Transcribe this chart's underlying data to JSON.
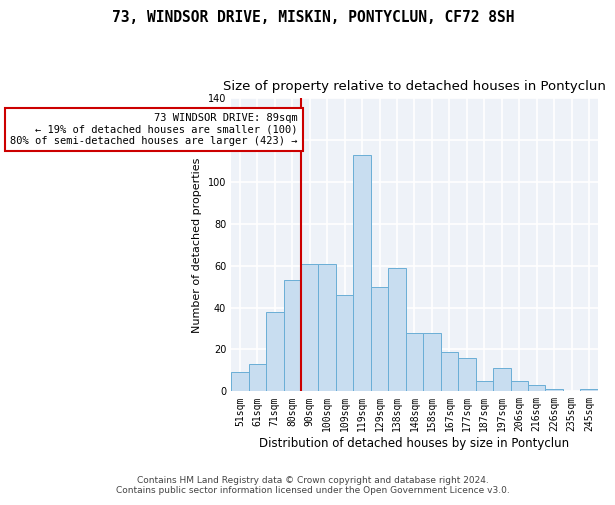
{
  "title1": "73, WINDSOR DRIVE, MISKIN, PONTYCLUN, CF72 8SH",
  "title2": "Size of property relative to detached houses in Pontyclun",
  "xlabel": "Distribution of detached houses by size in Pontyclun",
  "ylabel": "Number of detached properties",
  "footer1": "Contains HM Land Registry data © Crown copyright and database right 2024.",
  "footer2": "Contains public sector information licensed under the Open Government Licence v3.0.",
  "annotation_line1": "73 WINDSOR DRIVE: 89sqm",
  "annotation_line2": "← 19% of detached houses are smaller (100)",
  "annotation_line3": "80% of semi-detached houses are larger (423) →",
  "bar_categories": [
    "51sqm",
    "61sqm",
    "71sqm",
    "80sqm",
    "90sqm",
    "100sqm",
    "109sqm",
    "119sqm",
    "129sqm",
    "138sqm",
    "148sqm",
    "158sqm",
    "167sqm",
    "177sqm",
    "187sqm",
    "197sqm",
    "206sqm",
    "216sqm",
    "226sqm",
    "235sqm",
    "245sqm"
  ],
  "bar_values": [
    9,
    13,
    38,
    53,
    61,
    61,
    46,
    113,
    50,
    59,
    28,
    28,
    19,
    16,
    5,
    11,
    5,
    3,
    1,
    0,
    1
  ],
  "bar_color": "#c8ddf0",
  "bar_edgecolor": "#6aaed6",
  "vline_index": 4,
  "ylim": [
    0,
    140
  ],
  "yticks": [
    0,
    20,
    40,
    60,
    80,
    100,
    120,
    140
  ],
  "bg_color": "#eef2f8",
  "grid_color": "#ffffff",
  "annotation_box_edgecolor": "#cc0000",
  "vline_color": "#cc0000",
  "title1_fontsize": 10.5,
  "title2_fontsize": 9.5,
  "xlabel_fontsize": 8.5,
  "ylabel_fontsize": 8,
  "tick_fontsize": 7,
  "annotation_fontsize": 7.5,
  "footer_fontsize": 6.5
}
